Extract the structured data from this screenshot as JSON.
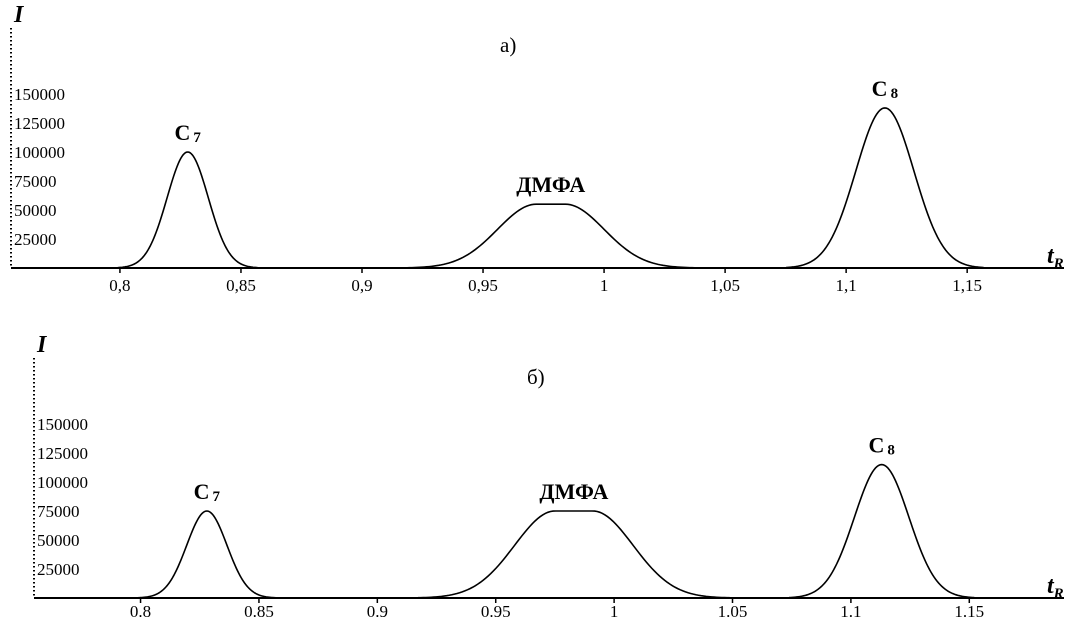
{
  "chart_data": [
    {
      "type": "line",
      "panel_label": "а)",
      "ylabel": "I",
      "xlabel": "t",
      "xlabel_subscript": "R",
      "xlim": [
        0.755,
        1.19
      ],
      "ylim": [
        0,
        160000
      ],
      "x_ticks": [
        "0,8",
        "0,85",
        "0,9",
        "0,95",
        "1",
        "1,05",
        "1,1",
        "1,15"
      ],
      "x_tick_values": [
        0.8,
        0.85,
        0.9,
        0.95,
        1.0,
        1.05,
        1.1,
        1.15
      ],
      "y_ticks": [
        "25000",
        "50000",
        "75000",
        "100000",
        "125000",
        "150000"
      ],
      "y_tick_values": [
        25000,
        50000,
        75000,
        100000,
        125000,
        150000
      ],
      "peaks": [
        {
          "label": "C",
          "label_sub": "7",
          "center": 0.828,
          "height": 100000,
          "sigma": 0.0085,
          "flat": 0
        },
        {
          "label": "ДМФА",
          "label_sub": "",
          "center": 0.978,
          "height": 55000,
          "sigma": 0.016,
          "flat": 0.006
        },
        {
          "label": "C",
          "label_sub": "8",
          "center": 1.116,
          "height": 138000,
          "sigma": 0.012,
          "flat": 0
        }
      ]
    },
    {
      "type": "line",
      "panel_label": "б)",
      "ylabel": "I",
      "xlabel": "t",
      "xlabel_subscript": "R",
      "xlim": [
        0.755,
        1.19
      ],
      "ylim": [
        0,
        160000
      ],
      "x_ticks": [
        "0.8",
        "0.85",
        "0.9",
        "0.95",
        "1",
        "1.05",
        "1.1",
        "1.15"
      ],
      "x_tick_values": [
        0.8,
        0.85,
        0.9,
        0.95,
        1.0,
        1.05,
        1.1,
        1.15
      ],
      "y_ticks": [
        "25000",
        "50000",
        "75000",
        "100000",
        "125000",
        "150000"
      ],
      "y_tick_values": [
        25000,
        50000,
        75000,
        100000,
        125000,
        150000
      ],
      "peaks": [
        {
          "label": "C",
          "label_sub": "7",
          "center": 0.828,
          "height": 75000,
          "sigma": 0.0085,
          "flat": 0
        },
        {
          "label": "ДМФА",
          "label_sub": "",
          "center": 0.983,
          "height": 75000,
          "sigma": 0.017,
          "flat": 0.008
        },
        {
          "label": "C",
          "label_sub": "8",
          "center": 1.113,
          "height": 115000,
          "sigma": 0.0115,
          "flat": 0
        }
      ]
    }
  ]
}
